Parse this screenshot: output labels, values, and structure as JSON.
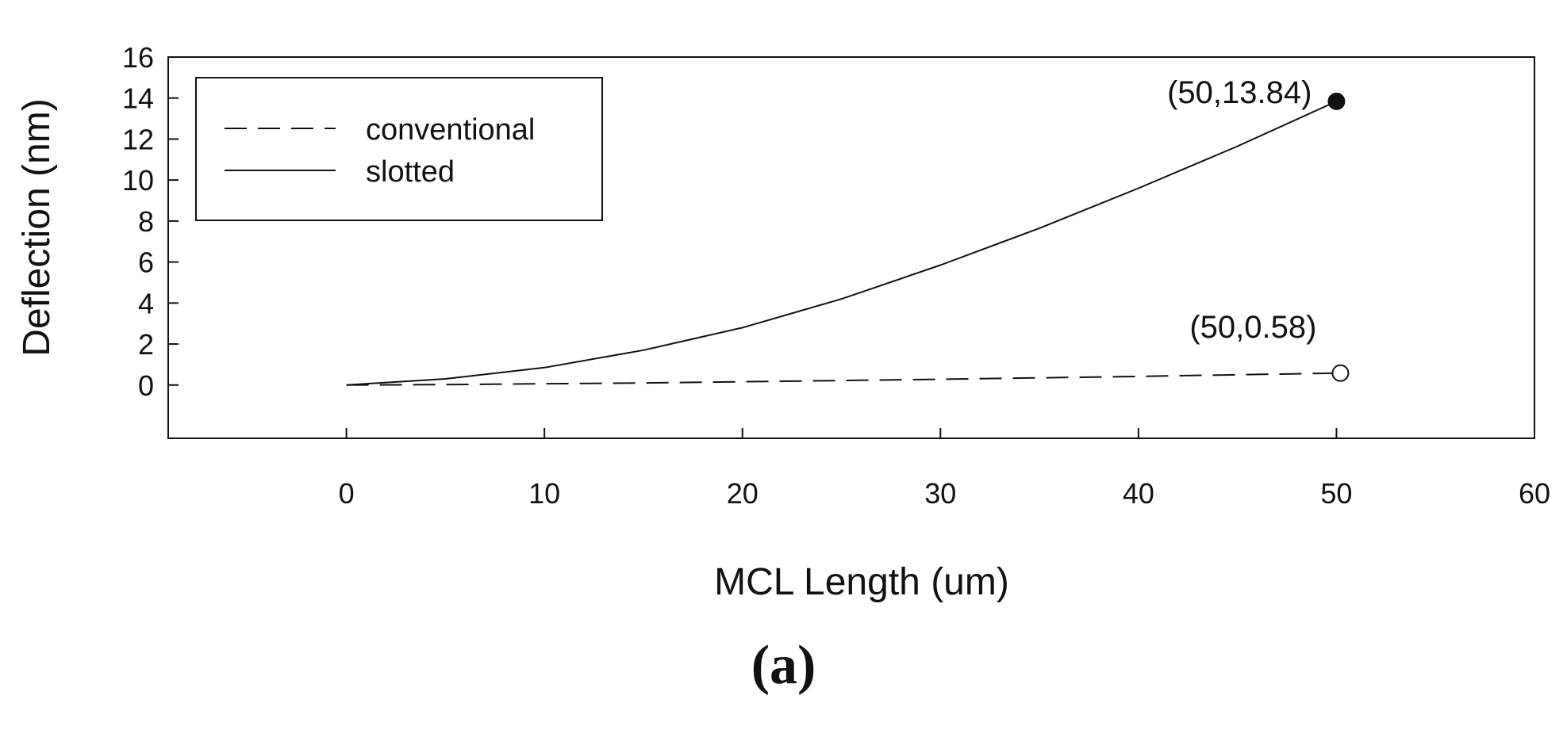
{
  "caption": "(a)",
  "chart_data": {
    "type": "line",
    "title": "",
    "xlabel": "MCL Length (um)",
    "ylabel": "Deflection (nm)",
    "xlim": [
      -9,
      60
    ],
    "ylim": [
      -2.6,
      16
    ],
    "xticks": [
      0,
      10,
      20,
      30,
      40,
      50,
      60
    ],
    "yticks": [
      0,
      2,
      4,
      6,
      8,
      10,
      12,
      14,
      16
    ],
    "grid": false,
    "legend_position": "top-left",
    "series": [
      {
        "name": "conventional",
        "style": "dashed",
        "x": [
          0,
          5,
          10,
          15,
          20,
          25,
          30,
          35,
          40,
          45,
          50
        ],
        "y": [
          0,
          0.02,
          0.06,
          0.1,
          0.16,
          0.22,
          0.28,
          0.35,
          0.42,
          0.5,
          0.58
        ],
        "endpoint_marker": "open-circle"
      },
      {
        "name": "slotted",
        "style": "solid",
        "x": [
          0,
          5,
          10,
          15,
          20,
          25,
          30,
          35,
          40,
          45,
          50
        ],
        "y": [
          0,
          0.3,
          0.85,
          1.7,
          2.8,
          4.2,
          5.85,
          7.65,
          9.6,
          11.65,
          13.84
        ],
        "endpoint_marker": "filled-circle"
      }
    ],
    "annotations": [
      {
        "text": "(50,13.84)",
        "x": 50,
        "y": 13.84,
        "series": "slotted"
      },
      {
        "text": "(50,0.58)",
        "x": 50,
        "y": 0.58,
        "series": "conventional"
      }
    ]
  }
}
